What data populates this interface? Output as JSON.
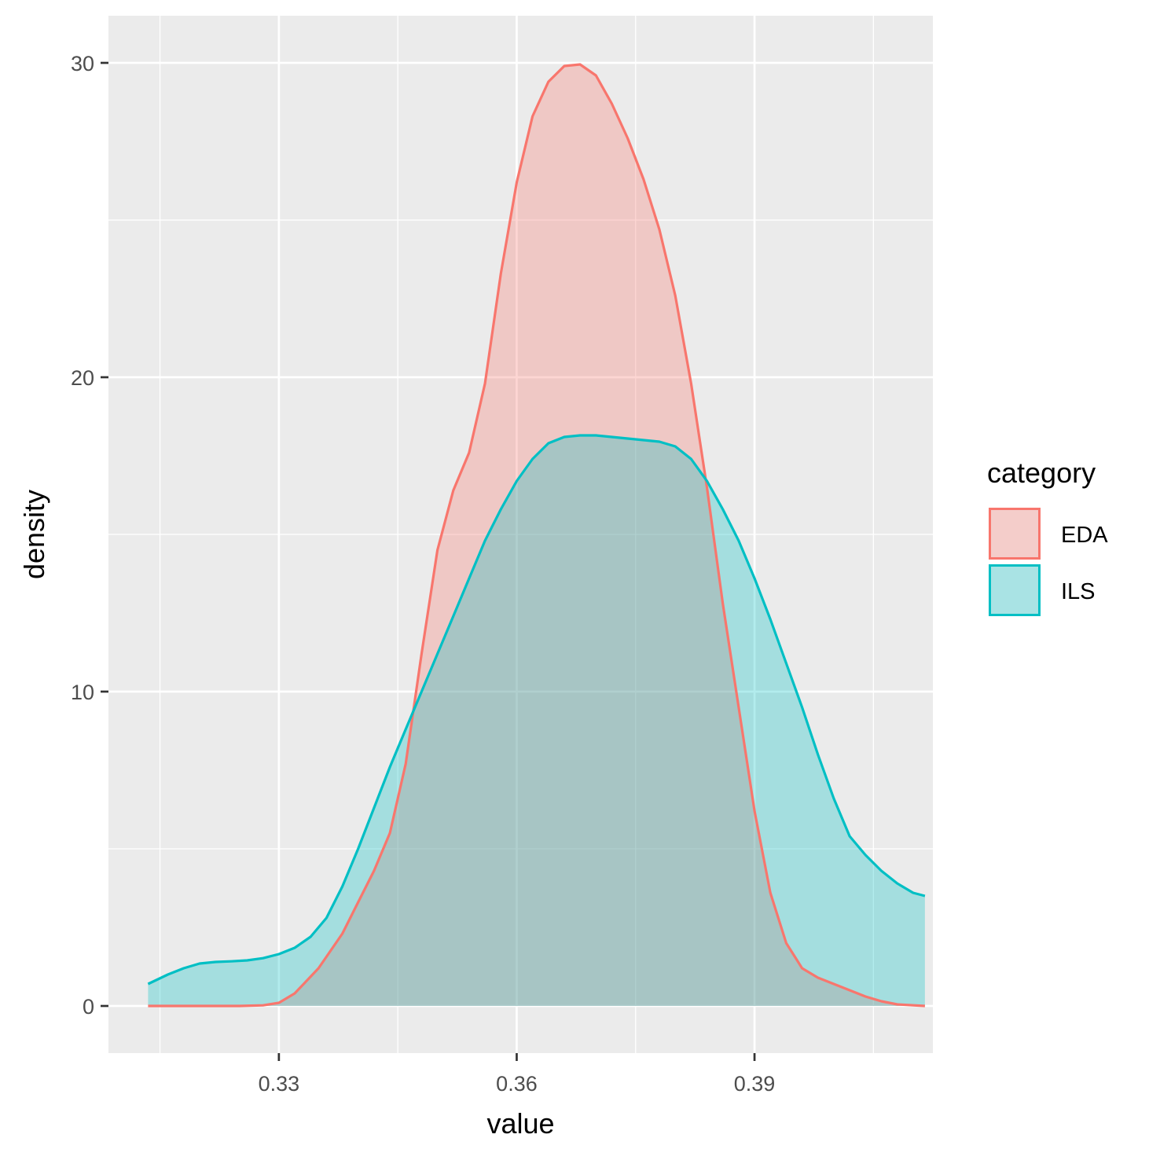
{
  "chart_data": {
    "type": "area",
    "subtype": "density",
    "xlabel": "value",
    "ylabel": "density",
    "xlim": [
      0.3085,
      0.4125
    ],
    "ylim": [
      -1.5,
      31.5
    ],
    "x_ticks": [
      0.33,
      0.36,
      0.39
    ],
    "x_tick_labels": [
      "0.33",
      "0.36",
      "0.39"
    ],
    "x_minor_ticks": [
      0.315,
      0.345,
      0.375,
      0.405
    ],
    "y_ticks": [
      0,
      10,
      20,
      30
    ],
    "y_tick_labels": [
      "0",
      "10",
      "20",
      "30"
    ],
    "y_minor_ticks": [
      5,
      15,
      25
    ],
    "grid": true,
    "legend": {
      "title": "category",
      "position": "right"
    },
    "series": [
      {
        "name": "EDA",
        "color": "#F8766D",
        "fill_alpha": 0.3,
        "x": [
          0.3135,
          0.32,
          0.325,
          0.328,
          0.33,
          0.332,
          0.335,
          0.338,
          0.34,
          0.342,
          0.344,
          0.346,
          0.348,
          0.35,
          0.352,
          0.354,
          0.356,
          0.358,
          0.36,
          0.362,
          0.364,
          0.366,
          0.368,
          0.37,
          0.372,
          0.374,
          0.376,
          0.378,
          0.38,
          0.382,
          0.384,
          0.386,
          0.388,
          0.39,
          0.392,
          0.394,
          0.396,
          0.398,
          0.4,
          0.402,
          0.404,
          0.406,
          0.408,
          0.4115
        ],
        "y": [
          0,
          0,
          0,
          0.02,
          0.1,
          0.4,
          1.2,
          2.3,
          3.3,
          4.3,
          5.5,
          7.7,
          11.2,
          14.5,
          16.4,
          17.6,
          19.8,
          23.3,
          26.2,
          28.3,
          29.4,
          29.9,
          29.95,
          29.6,
          28.7,
          27.6,
          26.3,
          24.7,
          22.6,
          19.8,
          16.5,
          12.8,
          9.5,
          6.2,
          3.6,
          2.0,
          1.2,
          0.9,
          0.7,
          0.5,
          0.3,
          0.15,
          0.05,
          0
        ]
      },
      {
        "name": "ILS",
        "color": "#00BFC4",
        "fill_alpha": 0.3,
        "x": [
          0.3135,
          0.316,
          0.318,
          0.32,
          0.322,
          0.324,
          0.326,
          0.328,
          0.33,
          0.332,
          0.334,
          0.336,
          0.338,
          0.34,
          0.342,
          0.344,
          0.346,
          0.348,
          0.35,
          0.352,
          0.354,
          0.356,
          0.358,
          0.36,
          0.362,
          0.364,
          0.366,
          0.368,
          0.37,
          0.372,
          0.374,
          0.376,
          0.378,
          0.38,
          0.382,
          0.384,
          0.386,
          0.388,
          0.39,
          0.392,
          0.394,
          0.396,
          0.398,
          0.4,
          0.402,
          0.404,
          0.406,
          0.408,
          0.41,
          0.4115
        ],
        "y": [
          0.7,
          1.0,
          1.2,
          1.35,
          1.4,
          1.42,
          1.45,
          1.52,
          1.65,
          1.85,
          2.2,
          2.8,
          3.8,
          5.0,
          6.3,
          7.6,
          8.8,
          10.0,
          11.2,
          12.4,
          13.6,
          14.8,
          15.8,
          16.7,
          17.4,
          17.9,
          18.1,
          18.15,
          18.15,
          18.1,
          18.05,
          18.0,
          17.95,
          17.8,
          17.4,
          16.7,
          15.8,
          14.8,
          13.6,
          12.3,
          10.9,
          9.5,
          8.0,
          6.6,
          5.4,
          4.8,
          4.3,
          3.9,
          3.6,
          3.5
        ]
      }
    ]
  }
}
